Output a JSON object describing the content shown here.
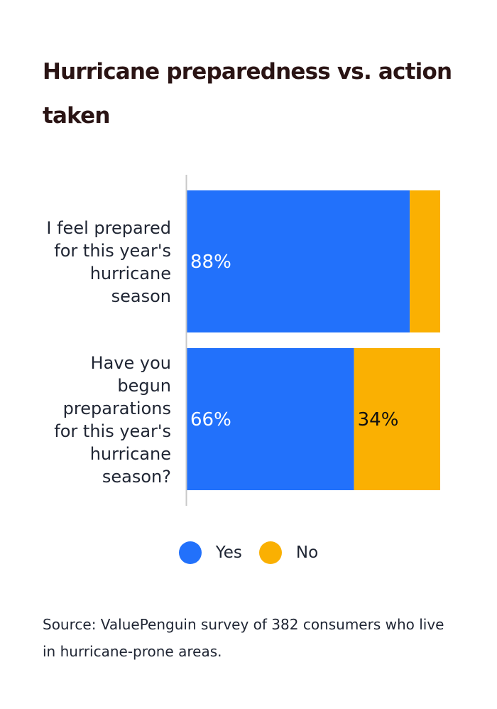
{
  "colors": {
    "yes": "#2271fb",
    "no": "#fab002",
    "axis": "#c8c8c8",
    "label_on_yes": "#ffffff",
    "label_on_no": "#111111"
  },
  "chart_data": {
    "type": "bar",
    "orientation": "horizontal",
    "stacked": true,
    "title": "Hurricane preparedness vs. action taken",
    "xlabel": "",
    "ylabel": "",
    "xlim": [
      0,
      100
    ],
    "grid": false,
    "legend_position": "bottom",
    "categories": [
      {
        "lines": [
          "I feel prepared",
          "for this year's",
          "hurricane",
          "season"
        ]
      },
      {
        "lines": [
          "Have you",
          "begun",
          "preparations",
          "for this year's",
          "hurricane",
          "season?"
        ]
      }
    ],
    "series": [
      {
        "name": "Yes",
        "values": [
          88,
          66
        ],
        "labels": [
          "88%",
          "66%"
        ]
      },
      {
        "name": "No",
        "values": [
          12,
          34
        ],
        "labels": [
          "",
          "34%"
        ]
      }
    ]
  },
  "source": "Source: ValuePenguin survey of 382 consumers who live in hurricane-prone areas."
}
